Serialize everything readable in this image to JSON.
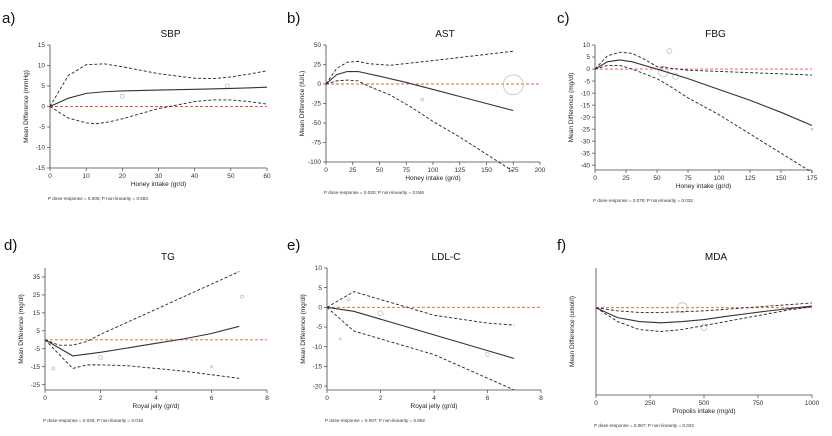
{
  "chart_data": [
    {
      "type": "line",
      "panel": "a)",
      "title": "SBP",
      "xlabel": "Honey intake (gr/d)",
      "ylabel": "Mean Difference (mmHg)",
      "xlim": [
        0,
        60
      ],
      "ylim": [
        -15,
        15
      ],
      "xticks": [
        0,
        10,
        20,
        30,
        40,
        50,
        60
      ],
      "yticks": [
        -15,
        -10,
        -5,
        0,
        5,
        10,
        15
      ],
      "fit": {
        "x": [
          0,
          5,
          10,
          15,
          20,
          30,
          40,
          50,
          60
        ],
        "y": [
          0,
          2,
          3.2,
          3.6,
          3.8,
          4,
          4.2,
          4.4,
          4.7
        ]
      },
      "ci_upper": {
        "x": [
          0,
          5,
          10,
          15,
          20,
          30,
          40,
          45,
          50,
          55,
          60
        ],
        "y": [
          0,
          7.5,
          10.2,
          10.4,
          9.7,
          8,
          6.9,
          6.8,
          7.2,
          7.9,
          8.7
        ]
      },
      "ci_lower": {
        "x": [
          0,
          5,
          10,
          13,
          16,
          20,
          30,
          40,
          45,
          50,
          55,
          60
        ],
        "y": [
          0,
          -2.8,
          -4,
          -4.2,
          -3.8,
          -3,
          -0.5,
          1.2,
          1.6,
          1.6,
          1.2,
          0.6
        ]
      },
      "studies": [
        {
          "x": 20,
          "y": 2.5,
          "s": 2
        },
        {
          "x": 49,
          "y": 5,
          "s": 2
        }
      ],
      "p_text": "P dose-response = 0.005; P non-linearity = 0.583",
      "p_values": {
        "dose_response": "0.005",
        "non_linearity": "0.583"
      }
    },
    {
      "type": "line",
      "panel": "b)",
      "title": "AST",
      "xlabel": "Honey intake (gr/d)",
      "ylabel": "Mean Difference (IU/L)",
      "xlim": [
        0,
        200
      ],
      "ylim": [
        -100,
        50
      ],
      "xticks": [
        0,
        25,
        50,
        75,
        100,
        125,
        150,
        175,
        200
      ],
      "yticks": [
        -100,
        -75,
        -50,
        -25,
        0,
        25,
        50
      ],
      "fit": {
        "x": [
          0,
          10,
          20,
          30,
          50,
          75,
          100,
          125,
          150,
          175
        ],
        "y": [
          0,
          12,
          16,
          16,
          10,
          2,
          -7,
          -16,
          -25,
          -34
        ]
      },
      "ci_upper": {
        "x": [
          0,
          10,
          20,
          30,
          40,
          60,
          80,
          100,
          125,
          150,
          175
        ],
        "y": [
          0,
          20,
          28,
          29,
          26,
          24,
          27,
          30,
          34,
          38,
          42
        ]
      },
      "ci_lower": {
        "x": [
          0,
          10,
          20,
          30,
          40,
          60,
          80,
          100,
          125,
          150,
          175
        ],
        "y": [
          0,
          4,
          5,
          4,
          -3,
          -14,
          -30,
          -48,
          -68,
          -90,
          -112
        ]
      },
      "studies": [
        {
          "x": 175,
          "y": -1,
          "s": 10
        },
        {
          "x": 90,
          "y": -20,
          "s": 1.5
        }
      ],
      "p_text": "P dose-response = 0.020; P non-linearity = 0.046",
      "p_values": {
        "dose_response": "0.020",
        "non_linearity": "0.046"
      }
    },
    {
      "type": "line",
      "panel": "c)",
      "title": "FBG",
      "xlabel": "Honey intake (gr/d)",
      "ylabel": "Mean Difference (mg/dl)",
      "xlim": [
        0,
        175
      ],
      "ylim": [
        -42,
        10
      ],
      "xticks": [
        0,
        25,
        50,
        75,
        100,
        125,
        150,
        175
      ],
      "yticks": [
        -40,
        -35,
        -30,
        -25,
        -20,
        -15,
        -10,
        -5,
        0,
        5,
        10
      ],
      "fit": {
        "x": [
          0,
          10,
          20,
          30,
          50,
          75,
          100,
          125,
          150,
          175
        ],
        "y": [
          0,
          3,
          3.8,
          3,
          0,
          -4,
          -8.5,
          -13,
          -18,
          -23.5
        ]
      },
      "ci_upper": {
        "x": [
          0,
          10,
          20,
          30,
          40,
          50,
          75,
          100,
          125,
          150,
          175
        ],
        "y": [
          0,
          5.5,
          7,
          6.5,
          4,
          1,
          -0.5,
          -1,
          -1.5,
          -2,
          -2.5
        ]
      },
      "ci_lower": {
        "x": [
          0,
          10,
          20,
          30,
          40,
          50,
          60,
          75,
          100,
          125,
          150,
          175
        ],
        "y": [
          0,
          1.5,
          1.5,
          0,
          -2,
          -4,
          -7,
          -12,
          -19,
          -27,
          -35,
          -43
        ]
      },
      "studies": [
        {
          "x": 60,
          "y": 7.5,
          "s": 2.5
        },
        {
          "x": 55,
          "y": -1,
          "s": 5
        },
        {
          "x": 65,
          "y": -3,
          "s": 3
        },
        {
          "x": 175,
          "y": -25,
          "s": 1
        }
      ],
      "p_text": "P dose-response = 0.078; P non-linearity = 0.032",
      "p_values": {
        "dose_response": "0.078",
        "non_linearity": "0.032"
      }
    },
    {
      "type": "line",
      "panel": "d)",
      "title": "TG",
      "xlabel": "Royal jelly (gr/d)",
      "ylabel": "Mean Difference (mg/dl)",
      "xlim": [
        0,
        8
      ],
      "ylim": [
        -28,
        40
      ],
      "xticks": [
        0,
        2,
        4,
        6,
        8
      ],
      "yticks": [
        -25,
        -15,
        -5,
        5,
        15,
        25,
        35
      ],
      "fit": {
        "x": [
          0,
          1,
          2,
          3,
          4,
          5,
          6,
          7
        ],
        "y": [
          0,
          -9,
          -7,
          -4.5,
          -2,
          0.5,
          3.5,
          7.5
        ]
      },
      "ci_upper": {
        "x": [
          0,
          0.5,
          1,
          1.5,
          2,
          3,
          4,
          5,
          6,
          7
        ],
        "y": [
          0,
          -3,
          -3,
          -1,
          3,
          10,
          17,
          24,
          31,
          38
        ]
      },
      "ci_lower": {
        "x": [
          0,
          0.5,
          1,
          1.5,
          2,
          3,
          4,
          5,
          6,
          7
        ],
        "y": [
          0,
          -8,
          -16,
          -14,
          -14,
          -14.5,
          -16,
          -17.5,
          -19.5,
          -21.5
        ]
      },
      "studies": [
        {
          "x": 0.3,
          "y": -16,
          "s": 1.5
        },
        {
          "x": 2,
          "y": -10,
          "s": 2
        },
        {
          "x": 6,
          "y": -15,
          "s": 1
        },
        {
          "x": 7.1,
          "y": 24,
          "s": 1.5
        }
      ],
      "p_text": "P dose-response = 0.036; P non-linearity = 0.018",
      "p_values": {
        "dose_response": "0.036",
        "non_linearity": "0.018"
      }
    },
    {
      "type": "line",
      "panel": "e)",
      "title": "LDL-C",
      "xlabel": "Royal jelly (gr/d)",
      "ylabel": "Mean Difference (mg/dl)",
      "xlim": [
        0,
        8
      ],
      "ylim": [
        -21,
        10
      ],
      "xticks": [
        0,
        2,
        4,
        6,
        8
      ],
      "yticks": [
        -20,
        -15,
        -10,
        -5,
        0,
        5,
        10
      ],
      "fit": {
        "x": [
          0,
          1,
          2,
          3,
          4,
          5,
          6,
          7
        ],
        "y": [
          0,
          -1,
          -3,
          -5,
          -7,
          -9,
          -11,
          -13
        ]
      },
      "ci_upper": {
        "x": [
          0,
          0.5,
          1,
          1.5,
          2,
          3,
          4,
          5,
          6,
          7
        ],
        "y": [
          0,
          2,
          4,
          3,
          2,
          0,
          -2,
          -3,
          -4,
          -4.5
        ]
      },
      "ci_lower": {
        "x": [
          0,
          0.5,
          1,
          1.5,
          2,
          3,
          4,
          5,
          6,
          7
        ],
        "y": [
          0,
          -3,
          -6,
          -7,
          -8,
          -10,
          -12,
          -15,
          -18,
          -21
        ]
      },
      "studies": [
        {
          "x": 0.5,
          "y": -8,
          "s": 1
        },
        {
          "x": 0.8,
          "y": 2,
          "s": 1.5
        },
        {
          "x": 2,
          "y": -1.5,
          "s": 2.5
        },
        {
          "x": 6,
          "y": -12,
          "s": 2
        }
      ],
      "p_text": "P dose-response = 0.007; P non-linearity = 0.692",
      "p_values": {
        "dose_response": "0.007",
        "non_linearity": "0.692"
      }
    },
    {
      "type": "line",
      "panel": "f)",
      "title": "MDA",
      "xlabel": "Propolis intake (mg/d)",
      "ylabel": "Mean Difference (umol/l)",
      "xlim": [
        0,
        1000
      ],
      "ylim": [
        -2.2,
        1
      ],
      "xticks": [
        0,
        250,
        500,
        750,
        1000
      ],
      "yticks": [],
      "fit": {
        "x": [
          0,
          100,
          200,
          300,
          400,
          500,
          600,
          700,
          800,
          900,
          1000
        ],
        "y": [
          0,
          -0.25,
          -0.35,
          -0.38,
          -0.35,
          -0.3,
          -0.22,
          -0.15,
          -0.08,
          -0.02,
          0.04
        ]
      },
      "ci_upper": {
        "x": [
          0,
          100,
          200,
          300,
          400,
          500,
          600,
          700,
          800,
          900,
          1000
        ],
        "y": [
          0,
          -0.08,
          -0.12,
          -0.12,
          -0.1,
          -0.08,
          -0.04,
          0,
          0.04,
          0.08,
          0.12
        ]
      },
      "ci_lower": {
        "x": [
          0,
          100,
          200,
          300,
          400,
          500,
          600,
          700,
          800,
          900,
          1000
        ],
        "y": [
          0,
          -0.35,
          -0.55,
          -0.6,
          -0.55,
          -0.45,
          -0.35,
          -0.25,
          -0.15,
          -0.05,
          0.02
        ]
      },
      "studies": [
        {
          "x": 400,
          "y": 0,
          "s": 5
        },
        {
          "x": 500,
          "y": -0.5,
          "s": 3
        }
      ],
      "p_text": "P dose-response = 0.067; P non-linearity = 0.022",
      "p_values": {
        "dose_response": "0.067",
        "non_linearity": "0.022"
      }
    }
  ],
  "colors": {
    "fit": "#333333",
    "ci": "#222222",
    "reference": "#e8543c",
    "study": "#c0c0c0",
    "axis": "#444444"
  }
}
